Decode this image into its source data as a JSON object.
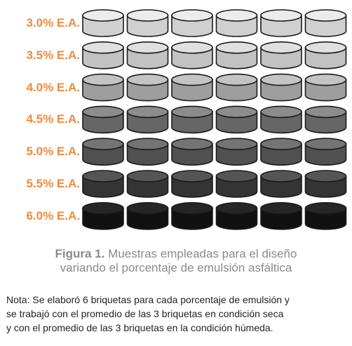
{
  "figure": {
    "label_color": "#f08a3c",
    "rows": [
      {
        "label": "3.0% E.A.",
        "fill": "#dcdcdc",
        "side": "#d0d0d0",
        "top": "#ececec"
      },
      {
        "label": "3.5% E.A.",
        "fill": "#cdcdcd",
        "side": "#c2c2c2",
        "top": "#e0e0e0"
      },
      {
        "label": "4.0% E.A.",
        "fill": "#a9a9a9",
        "side": "#9e9e9e",
        "top": "#c4c4c4"
      },
      {
        "label": "4.5% E.A.",
        "fill": "#6e6e6e",
        "side": "#666666",
        "top": "#8c8c8c"
      },
      {
        "label": "5.0% E.A.",
        "fill": "#575757",
        "side": "#505050",
        "top": "#747474"
      },
      {
        "label": "5.5% E.A.",
        "fill": "#3a3a3a",
        "side": "#343434",
        "top": "#555555"
      },
      {
        "label": "6.0% E.A.",
        "fill": "#151515",
        "side": "#111111",
        "top": "#262626"
      }
    ],
    "briquettes_per_row": 6
  },
  "caption": {
    "label": "Figura 1.",
    "text_line1": " Muestras empleadas para el diseño",
    "text_line2": "variando el porcentaje de emulsión asfáltica"
  },
  "note": {
    "line1": "Nota: Se elaboró 6 briquetas para cada porcentaje de emulsión y",
    "line2": "se trabajó con el promedio de las 3 briquetas en condición seca",
    "line3": "y con el promedio de las 3 briquetas en la condición húmeda."
  }
}
